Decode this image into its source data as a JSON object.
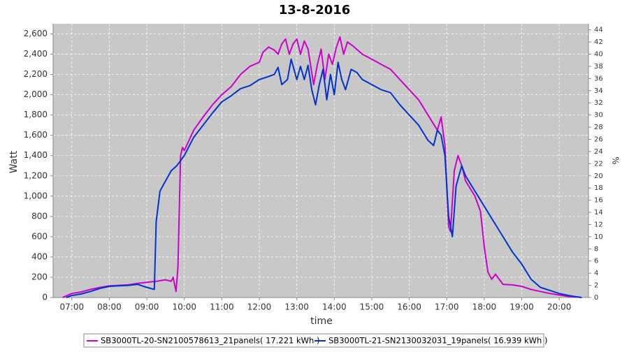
{
  "chart_data": {
    "type": "line",
    "title": "13-8-2016",
    "x_label": "time",
    "y_label": "Watt",
    "y2_label": "%",
    "xlim": [
      6.5,
      20.78
    ],
    "xticks": [
      {
        "value": 7,
        "label": "07:00"
      },
      {
        "value": 8,
        "label": "08:00"
      },
      {
        "value": 9,
        "label": "09:00"
      },
      {
        "value": 10,
        "label": "10:00"
      },
      {
        "value": 11,
        "label": "11:00"
      },
      {
        "value": 12,
        "label": "12:00"
      },
      {
        "value": 13,
        "label": "13:00"
      },
      {
        "value": 14,
        "label": "14:00"
      },
      {
        "value": 15,
        "label": "15:00"
      },
      {
        "value": 16,
        "label": "16:00"
      },
      {
        "value": 17,
        "label": "17:00"
      },
      {
        "value": 18,
        "label": "18:00"
      },
      {
        "value": 19,
        "label": "19:00"
      },
      {
        "value": 20,
        "label": "20:00"
      }
    ],
    "ylim": [
      0,
      2700
    ],
    "yticks": [
      0,
      200,
      400,
      600,
      800,
      {
        "value": 1000,
        "label": "1,000"
      },
      {
        "value": 1200,
        "label": "1,200"
      },
      {
        "value": 1400,
        "label": "1,400"
      },
      {
        "value": 1600,
        "label": "1,600"
      },
      {
        "value": 1800,
        "label": "1,800"
      },
      {
        "value": 2000,
        "label": "2,000"
      },
      {
        "value": 2200,
        "label": "2,200"
      },
      {
        "value": 2400,
        "label": "2,400"
      },
      {
        "value": 2600,
        "label": "2,600"
      }
    ],
    "y2lim": [
      0,
      45
    ],
    "y2ticks": [
      0,
      2,
      4,
      6,
      8,
      10,
      12,
      14,
      16,
      18,
      20,
      22,
      24,
      26,
      28,
      30,
      32,
      34,
      36,
      38,
      40,
      42,
      44
    ],
    "grid": true,
    "legend": "bottom",
    "series": [
      {
        "name": "SB3000TL-20-SN2100578613_21panels( 17.221 kWh )",
        "color": "#cc00cc",
        "x": [
          6.75,
          7.0,
          7.25,
          7.5,
          7.75,
          8.0,
          8.25,
          8.5,
          8.75,
          9.0,
          9.25,
          9.5,
          9.65,
          9.7,
          9.78,
          9.83,
          9.9,
          9.95,
          10.0,
          10.25,
          10.5,
          10.75,
          11.0,
          11.25,
          11.5,
          11.75,
          12.0,
          12.1,
          12.25,
          12.4,
          12.5,
          12.6,
          12.7,
          12.8,
          12.9,
          13.0,
          13.1,
          13.2,
          13.3,
          13.45,
          13.55,
          13.65,
          13.75,
          13.85,
          13.95,
          14.05,
          14.15,
          14.25,
          14.35,
          14.5,
          14.75,
          15.0,
          15.25,
          15.5,
          15.75,
          16.0,
          16.25,
          16.5,
          16.75,
          16.85,
          16.95,
          17.05,
          17.1,
          17.2,
          17.3,
          17.4,
          17.5,
          17.75,
          17.9,
          18.0,
          18.1,
          18.2,
          18.3,
          18.5,
          18.75,
          19.0,
          19.25,
          19.5,
          19.75,
          20.0,
          20.25,
          20.5,
          20.6
        ],
        "values": [
          0,
          40,
          55,
          80,
          100,
          115,
          120,
          125,
          140,
          150,
          160,
          175,
          160,
          200,
          60,
          300,
          1400,
          1480,
          1450,
          1650,
          1780,
          1900,
          2000,
          2080,
          2200,
          2280,
          2320,
          2420,
          2470,
          2440,
          2400,
          2500,
          2550,
          2400,
          2500,
          2550,
          2400,
          2530,
          2450,
          2100,
          2300,
          2450,
          2150,
          2400,
          2300,
          2460,
          2570,
          2400,
          2520,
          2480,
          2400,
          2350,
          2300,
          2250,
          2150,
          2050,
          1950,
          1800,
          1650,
          1780,
          1500,
          700,
          650,
          1250,
          1400,
          1300,
          1150,
          1000,
          850,
          500,
          250,
          180,
          230,
          130,
          125,
          110,
          80,
          60,
          40,
          25,
          10,
          5,
          0
        ]
      },
      {
        "name": "SB3000TL-21-SN2130032031_19panels( 16.939 kWh )",
        "color": "#0033cc",
        "x": [
          6.85,
          7.0,
          7.25,
          7.5,
          7.75,
          8.0,
          8.25,
          8.5,
          8.75,
          9.0,
          9.1,
          9.2,
          9.25,
          9.35,
          9.5,
          9.65,
          9.8,
          10.0,
          10.25,
          10.5,
          10.75,
          11.0,
          11.25,
          11.5,
          11.75,
          12.0,
          12.25,
          12.4,
          12.5,
          12.6,
          12.75,
          12.85,
          13.0,
          13.1,
          13.2,
          13.3,
          13.4,
          13.5,
          13.6,
          13.7,
          13.8,
          13.9,
          14.0,
          14.1,
          14.2,
          14.3,
          14.45,
          14.6,
          14.75,
          15.0,
          15.25,
          15.5,
          15.75,
          16.0,
          16.25,
          16.5,
          16.65,
          16.75,
          16.85,
          16.95,
          17.05,
          17.15,
          17.25,
          17.4,
          17.5,
          17.75,
          18.0,
          18.25,
          18.5,
          18.75,
          19.0,
          19.25,
          19.5,
          19.75,
          20.0,
          20.25,
          20.5,
          20.6
        ],
        "values": [
          0,
          20,
          35,
          60,
          90,
          110,
          115,
          120,
          130,
          100,
          90,
          80,
          750,
          1050,
          1150,
          1250,
          1300,
          1400,
          1580,
          1700,
          1820,
          1930,
          1990,
          2060,
          2090,
          2150,
          2180,
          2200,
          2270,
          2100,
          2150,
          2350,
          2150,
          2280,
          2150,
          2290,
          2050,
          1900,
          2100,
          2250,
          1950,
          2200,
          2000,
          2320,
          2150,
          2050,
          2250,
          2220,
          2150,
          2100,
          2050,
          2020,
          1900,
          1800,
          1700,
          1550,
          1500,
          1650,
          1600,
          1400,
          800,
          600,
          1100,
          1300,
          1200,
          1050,
          900,
          750,
          600,
          450,
          330,
          180,
          100,
          70,
          40,
          20,
          5,
          0
        ]
      }
    ]
  }
}
